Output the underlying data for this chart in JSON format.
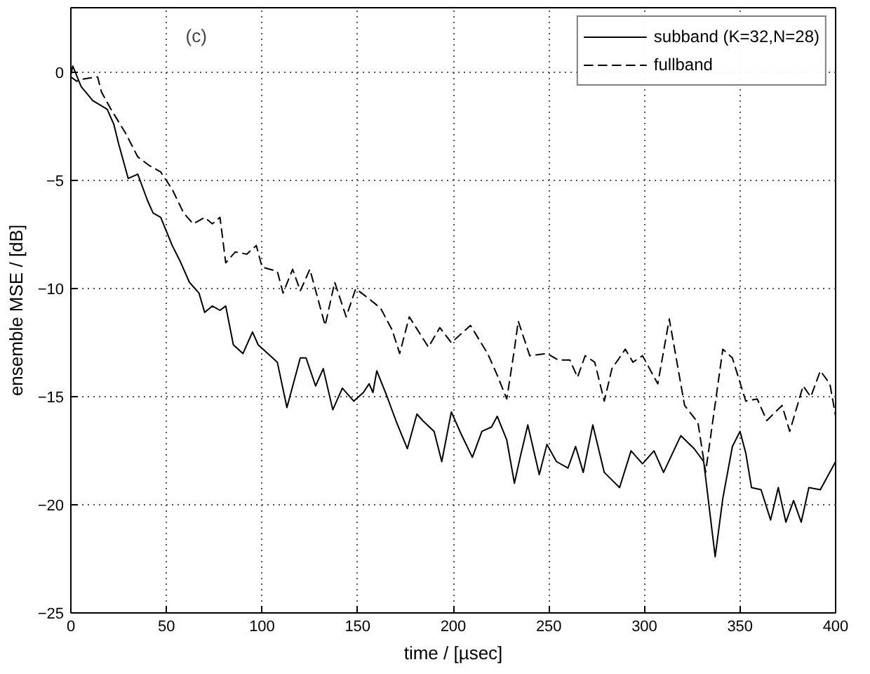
{
  "chart_data": {
    "type": "line",
    "xlabel": "time / [µsec]",
    "ylabel": "ensemble MSE / [dB]",
    "annotations": [
      "(c)"
    ],
    "xlim": [
      0,
      400
    ],
    "ylim": [
      -25,
      3
    ],
    "xticks": [
      0,
      50,
      100,
      150,
      200,
      250,
      300,
      350,
      400
    ],
    "yticks": [
      -25,
      -20,
      -15,
      -10,
      -5,
      0
    ],
    "grid": true,
    "legend": "top right",
    "series": [
      {
        "name": "subband (K=32,N=28)",
        "color": "#000000",
        "line_style": "solid",
        "x": [
          0,
          1,
          5.4,
          11.5,
          19,
          22.5,
          25,
          30,
          35,
          40,
          43,
          47,
          53,
          57,
          62,
          67,
          70,
          74,
          78,
          81,
          85,
          90,
          95,
          98,
          103,
          108,
          113,
          120,
          123,
          128,
          132,
          137,
          142,
          148,
          153,
          156,
          158,
          160,
          165,
          170,
          176,
          181,
          184,
          190,
          194,
          199,
          204,
          210,
          215,
          220,
          223,
          228,
          232,
          235,
          239,
          245,
          249,
          254,
          260,
          264,
          268,
          273,
          279,
          287,
          293,
          299,
          305,
          310,
          319,
          326,
          331,
          337,
          341,
          346,
          350,
          353,
          356,
          361,
          366,
          370,
          374,
          378,
          382,
          386,
          392,
          400
        ],
        "values": [
          -0.1,
          0.3,
          -0.65,
          -1.3,
          -1.7,
          -2.4,
          -3.3,
          -4.9,
          -4.7,
          -5.9,
          -6.5,
          -6.7,
          -8,
          -8.7,
          -9.7,
          -10.2,
          -11.1,
          -10.8,
          -11,
          -10.8,
          -12.6,
          -13,
          -12,
          -12.6,
          -13,
          -13.4,
          -15.5,
          -13.2,
          -13.2,
          -14.5,
          -13.7,
          -15.6,
          -14.6,
          -15.2,
          -14.8,
          -14.4,
          -14.8,
          -13.8,
          -14.9,
          -16.1,
          -17.4,
          -15.8,
          -16.1,
          -16.6,
          -18,
          -15.7,
          -16.7,
          -17.8,
          -16.6,
          -16.4,
          -15.9,
          -17,
          -19,
          -17.8,
          -16.3,
          -18.6,
          -17.2,
          -18,
          -18.3,
          -17.3,
          -18.5,
          -16.3,
          -18.5,
          -19.2,
          -17.5,
          -18.1,
          -17.5,
          -18.5,
          -16.8,
          -17.4,
          -18,
          -22.4,
          -19.7,
          -17.3,
          -16.6,
          -17.6,
          -19.2,
          -19.3,
          -20.7,
          -19.2,
          -20.8,
          -19.8,
          -20.8,
          -19.2,
          -19.3,
          -18
        ]
      },
      {
        "name": "fullband",
        "color": "#000000",
        "line_style": "dashed",
        "x": [
          0,
          3,
          6.6,
          14,
          16,
          21,
          28.6,
          35,
          41,
          47,
          53,
          59,
          64,
          70,
          74,
          78,
          81,
          86,
          92,
          97,
          100,
          108,
          111,
          116,
          120,
          125,
          133,
          138,
          144,
          149,
          155,
          162,
          168,
          172,
          177,
          187,
          193,
          199,
          209,
          218,
          223,
          228,
          232,
          234,
          240,
          249,
          255,
          261,
          265,
          269,
          274,
          279,
          283,
          290,
          294,
          299,
          307,
          313,
          321,
          328,
          332,
          341,
          346,
          353,
          359,
          364,
          372,
          376,
          383,
          387,
          392,
          397,
          400
        ],
        "values": [
          -0.2,
          -0.4,
          -0.3,
          -0.2,
          -0.9,
          -1.7,
          -2.8,
          -3.9,
          -4.3,
          -4.6,
          -5.4,
          -6.5,
          -7,
          -6.7,
          -7,
          -6.7,
          -8.8,
          -8.3,
          -8.4,
          -8,
          -9,
          -9.2,
          -10.2,
          -9.1,
          -10.1,
          -9.1,
          -11.7,
          -9.7,
          -11.3,
          -10,
          -10.4,
          -10.9,
          -11.9,
          -13,
          -11.3,
          -12.7,
          -11.8,
          -12.5,
          -11.7,
          -13,
          -14,
          -15.1,
          -12.8,
          -11.5,
          -13.1,
          -13,
          -13.3,
          -13.3,
          -14.1,
          -13.1,
          -13.4,
          -15.2,
          -13.7,
          -12.8,
          -13.4,
          -13.1,
          -14.4,
          -11.4,
          -15.4,
          -16.2,
          -18.5,
          -12.8,
          -13.2,
          -15.2,
          -15.1,
          -16.1,
          -15.4,
          -16.6,
          -14.5,
          -15,
          -13.8,
          -14.4,
          -15.9
        ]
      }
    ]
  }
}
